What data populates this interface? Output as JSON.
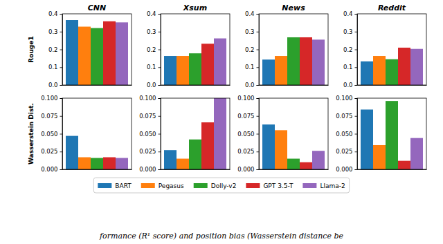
{
  "chart_data": [
    {
      "type": "bar",
      "title": "CNN",
      "y_label": "Rouge1",
      "categories": [
        null
      ],
      "tick_labels": "y",
      "legend": "bottom",
      "ylim": [
        0,
        0.4
      ],
      "yticks": [
        {
          "value": 0,
          "label": "0.0"
        },
        0.1,
        0.2,
        0.3,
        0.4
      ],
      "series": [
        {
          "name": "BART",
          "color": "#1f77b4",
          "values": [
            0.365
          ]
        },
        {
          "name": "Pegasus",
          "color": "#ff7f0e",
          "values": [
            0.328
          ]
        },
        {
          "name": "Dolly-v2",
          "color": "#2ca02c",
          "values": [
            0.32
          ]
        },
        {
          "name": "GPT 3.5-T",
          "color": "#d62728",
          "values": [
            0.358
          ]
        },
        {
          "name": "Llama-2",
          "color": "#9467bd",
          "values": [
            0.352
          ]
        }
      ]
    },
    {
      "type": "bar",
      "title": "Xsum",
      "categories": [
        null
      ],
      "tick_labels": "y",
      "ylim": [
        0,
        0.4
      ],
      "yticks": [
        {
          "value": 0,
          "label": "0.0"
        },
        0.1,
        0.2,
        0.3,
        0.4
      ],
      "series": [
        {
          "name": "BART",
          "color": "#1f77b4",
          "values": [
            0.163
          ]
        },
        {
          "name": "Pegasus",
          "color": "#ff7f0e",
          "values": [
            0.163
          ]
        },
        {
          "name": "Dolly-v2",
          "color": "#2ca02c",
          "values": [
            0.178
          ]
        },
        {
          "name": "GPT 3.5-T",
          "color": "#d62728",
          "values": [
            0.232
          ]
        },
        {
          "name": "Llama-2",
          "color": "#9467bd",
          "values": [
            0.262
          ]
        }
      ]
    },
    {
      "type": "bar",
      "title": "News",
      "categories": [
        null
      ],
      "tick_labels": "y",
      "ylim": [
        0,
        0.4
      ],
      "yticks": [
        {
          "value": 0,
          "label": "0.0"
        },
        0.1,
        0.2,
        0.3,
        0.4
      ],
      "series": [
        {
          "name": "BART",
          "color": "#1f77b4",
          "values": [
            0.143
          ]
        },
        {
          "name": "Pegasus",
          "color": "#ff7f0e",
          "values": [
            0.163
          ]
        },
        {
          "name": "Dolly-v2",
          "color": "#2ca02c",
          "values": [
            0.268
          ]
        },
        {
          "name": "GPT 3.5-T",
          "color": "#d62728",
          "values": [
            0.268
          ]
        },
        {
          "name": "Llama-2",
          "color": "#9467bd",
          "values": [
            0.255
          ]
        }
      ]
    },
    {
      "type": "bar",
      "title": "Reddit",
      "categories": [
        null
      ],
      "tick_labels": "y",
      "ylim": [
        0,
        0.4
      ],
      "yticks": [
        {
          "value": 0,
          "label": "0.0"
        },
        0.1,
        0.2,
        0.3,
        0.4
      ],
      "series": [
        {
          "name": "BART",
          "color": "#1f77b4",
          "values": [
            0.133
          ]
        },
        {
          "name": "Pegasus",
          "color": "#ff7f0e",
          "values": [
            0.163
          ]
        },
        {
          "name": "Dolly-v2",
          "color": "#2ca02c",
          "values": [
            0.145
          ]
        },
        {
          "name": "GPT 3.5-T",
          "color": "#d62728",
          "values": [
            0.21
          ]
        },
        {
          "name": "Llama-2",
          "color": "#9467bd",
          "values": [
            0.203
          ]
        }
      ]
    },
    {
      "type": "bar",
      "y_label": "Wasserstein Dist.",
      "categories": [
        null
      ],
      "tick_labels": "y",
      "ylim": [
        0,
        0.1
      ],
      "yticks": [
        {
          "value": 0,
          "label": "0.000"
        },
        {
          "value": 0.025,
          "label": "0.025"
        },
        {
          "value": 0.05,
          "label": "0.050"
        },
        {
          "value": 0.075,
          "label": "0.075"
        },
        {
          "value": 0.1,
          "label": "0.100"
        }
      ],
      "series": [
        {
          "name": "BART",
          "color": "#1f77b4",
          "values": [
            0.047
          ]
        },
        {
          "name": "Pegasus",
          "color": "#ff7f0e",
          "values": [
            0.017
          ]
        },
        {
          "name": "Dolly-v2",
          "color": "#2ca02c",
          "values": [
            0.016
          ]
        },
        {
          "name": "GPT 3.5-T",
          "color": "#d62728",
          "values": [
            0.017
          ]
        },
        {
          "name": "Llama-2",
          "color": "#9467bd",
          "values": [
            0.016
          ]
        }
      ]
    },
    {
      "type": "bar",
      "categories": [
        null
      ],
      "tick_labels": "y",
      "ylim": [
        0,
        0.1
      ],
      "yticks": [
        {
          "value": 0,
          "label": "0.000"
        },
        {
          "value": 0.025,
          "label": "0.025"
        },
        {
          "value": 0.05,
          "label": "0.050"
        },
        {
          "value": 0.075,
          "label": "0.075"
        },
        {
          "value": 0.1,
          "label": "0.100"
        }
      ],
      "series": [
        {
          "name": "BART",
          "color": "#1f77b4",
          "values": [
            0.027
          ]
        },
        {
          "name": "Pegasus",
          "color": "#ff7f0e",
          "values": [
            0.015
          ]
        },
        {
          "name": "Dolly-v2",
          "color": "#2ca02c",
          "values": [
            0.042
          ]
        },
        {
          "name": "GPT 3.5-T",
          "color": "#d62728",
          "values": [
            0.066
          ]
        },
        {
          "name": "Llama-2",
          "color": "#9467bd",
          "values": [
            0.1
          ]
        }
      ]
    },
    {
      "type": "bar",
      "categories": [
        null
      ],
      "tick_labels": "y",
      "ylim": [
        0,
        0.1
      ],
      "yticks": [
        {
          "value": 0,
          "label": "0.000"
        },
        {
          "value": 0.025,
          "label": "0.025"
        },
        {
          "value": 0.05,
          "label": "0.050"
        },
        {
          "value": 0.075,
          "label": "0.075"
        },
        {
          "value": 0.1,
          "label": "0.100"
        }
      ],
      "series": [
        {
          "name": "BART",
          "color": "#1f77b4",
          "values": [
            0.063
          ]
        },
        {
          "name": "Pegasus",
          "color": "#ff7f0e",
          "values": [
            0.055
          ]
        },
        {
          "name": "Dolly-v2",
          "color": "#2ca02c",
          "values": [
            0.015
          ]
        },
        {
          "name": "GPT 3.5-T",
          "color": "#d62728",
          "values": [
            0.01
          ]
        },
        {
          "name": "Llama-2",
          "color": "#9467bd",
          "values": [
            0.026
          ]
        }
      ]
    },
    {
      "type": "bar",
      "categories": [
        null
      ],
      "tick_labels": "y",
      "ylim": [
        0,
        0.1
      ],
      "yticks": [
        {
          "value": 0,
          "label": "0.000"
        },
        {
          "value": 0.025,
          "label": "0.025"
        },
        {
          "value": 0.05,
          "label": "0.050"
        },
        {
          "value": 0.075,
          "label": "0.075"
        },
        {
          "value": 0.1,
          "label": "0.100"
        }
      ],
      "series": [
        {
          "name": "BART",
          "color": "#1f77b4",
          "values": [
            0.084
          ]
        },
        {
          "name": "Pegasus",
          "color": "#ff7f0e",
          "values": [
            0.034
          ]
        },
        {
          "name": "Dolly-v2",
          "color": "#2ca02c",
          "values": [
            0.096
          ]
        },
        {
          "name": "GPT 3.5-T",
          "color": "#d62728",
          "values": [
            0.012
          ]
        },
        {
          "name": "Llama-2",
          "color": "#9467bd",
          "values": [
            0.044
          ]
        }
      ]
    }
  ],
  "caption": "formance (R¹ score) and position bias (Wasserstein distance be"
}
